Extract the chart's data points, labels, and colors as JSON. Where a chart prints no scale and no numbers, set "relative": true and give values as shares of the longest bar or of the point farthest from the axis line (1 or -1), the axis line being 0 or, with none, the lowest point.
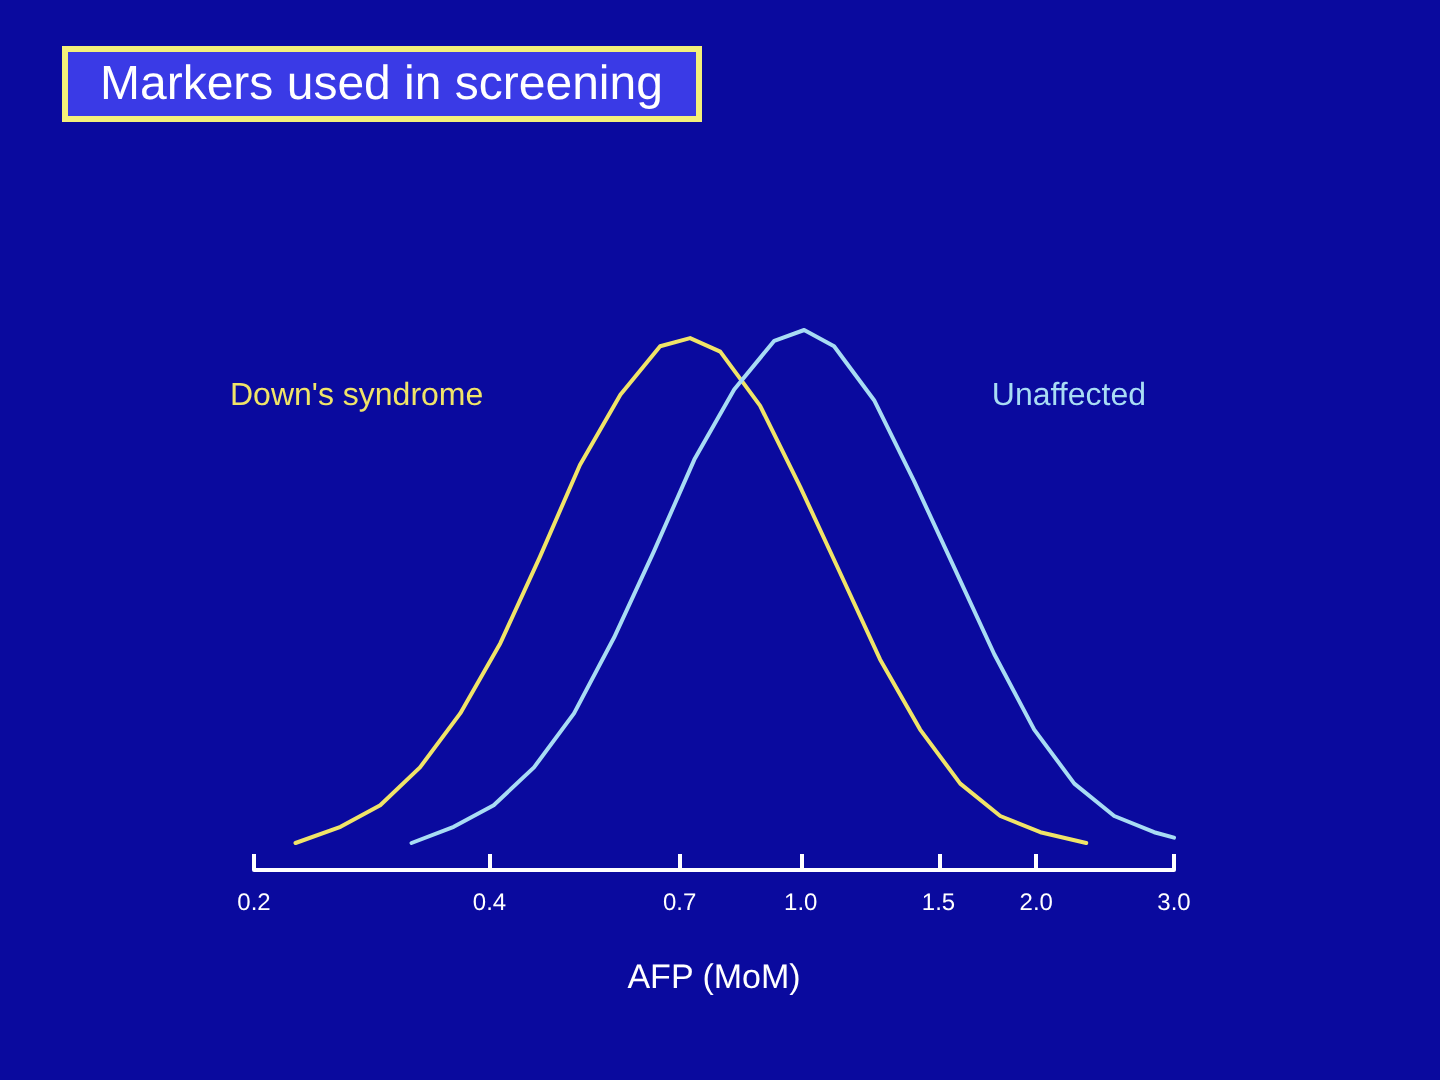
{
  "chart_data": {
    "type": "line",
    "title": "Markers used in screening",
    "xlabel": "AFP (MoM)",
    "relative": true,
    "log": "x",
    "grid": false,
    "legend": false,
    "marker": "none",
    "line_style": "solid",
    "xlim": [
      0.2,
      3.0
    ],
    "xticks": [
      0.2,
      0.4,
      0.7,
      {
        "value": 1,
        "label": "1.0"
      },
      1.5,
      {
        "value": 2,
        "label": "2.0"
      },
      {
        "value": 3,
        "label": "3.0"
      }
    ],
    "series": [
      {
        "name": "Down's syndrome",
        "color": "#f0e468",
        "x": [
          0.226,
          0.258,
          0.29,
          0.326,
          0.367,
          0.413,
          0.464,
          0.522,
          0.588,
          0.661,
          0.722,
          0.789,
          0.887,
          0.998,
          1.123,
          1.263,
          1.421,
          1.599,
          1.799,
          2.024,
          2.317
        ],
        "values": [
          0.05,
          0.08,
          0.12,
          0.19,
          0.29,
          0.42,
          0.58,
          0.75,
          0.88,
          0.97,
          0.985,
          0.96,
          0.86,
          0.71,
          0.55,
          0.39,
          0.26,
          0.16,
          0.1,
          0.07,
          0.05
        ]
      },
      {
        "name": "Unaffected",
        "color": "#a8dcf4",
        "x": [
          0.318,
          0.36,
          0.405,
          0.456,
          0.513,
          0.577,
          0.649,
          0.731,
          0.822,
          0.925,
          1.01,
          1.103,
          1.241,
          1.396,
          1.571,
          1.767,
          1.988,
          2.237,
          2.516,
          2.83,
          3.0
        ],
        "values": [
          0.05,
          0.08,
          0.12,
          0.19,
          0.29,
          0.43,
          0.59,
          0.76,
          0.89,
          0.98,
          1,
          0.97,
          0.87,
          0.72,
          0.56,
          0.4,
          0.26,
          0.16,
          0.1,
          0.07,
          0.06
        ]
      }
    ]
  }
}
